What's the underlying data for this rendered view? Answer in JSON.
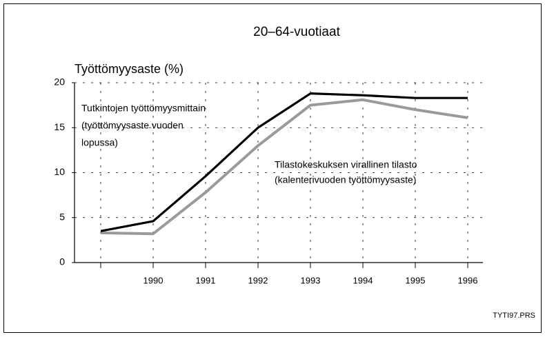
{
  "chart_data": {
    "type": "line",
    "title": "20–64-vuotiaat",
    "y_label": "Työttömyysaste (%)",
    "categories": [
      null,
      "1990",
      "1991",
      "1992",
      "1993",
      "1994",
      "1995",
      "1996"
    ],
    "series": [
      {
        "color": "#000000",
        "values": [
          3.5,
          4.6,
          9.6,
          15,
          18.8,
          18.6,
          18.3,
          18.3
        ]
      },
      {
        "color": "#9a9a9a",
        "values": [
          3.3,
          3.2,
          7.8,
          13,
          17.5,
          18.1,
          17.0,
          16.1
        ]
      }
    ],
    "annotations": [
      [
        "Tutkintojen työttömyysmittain",
        "(työttömyysaste vuoden",
        "lopussa)"
      ],
      [
        "Tilastokeskuksen virallinen tilasto",
        "(kalenterivuoden työttömyysaste)"
      ]
    ],
    "footer": "TYTI97.PRS",
    "ylim": [
      0,
      20
    ],
    "yticks": [
      0,
      5,
      10,
      15,
      20
    ],
    "grid": true
  }
}
